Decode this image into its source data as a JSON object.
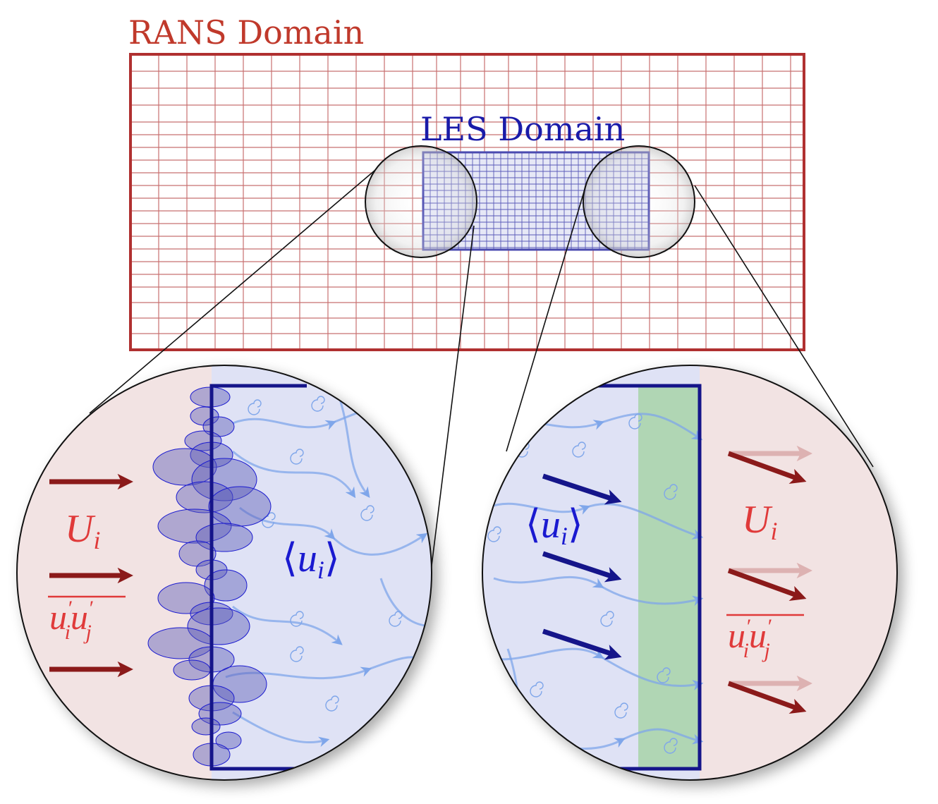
{
  "labels": {
    "rans_domain": "RANS Domain",
    "les_domain": "LES Domain"
  },
  "math": {
    "mean_velocity_symbol": "U",
    "mean_velocity_subscript": "i",
    "resolved_velocity_open": "⟨",
    "resolved_velocity_symbol": "u",
    "resolved_velocity_subscript": "i",
    "resolved_velocity_close": "⟩",
    "reynolds_stress_u1": "u",
    "reynolds_stress_prime": "′",
    "reynolds_stress_sub_i": "i",
    "reynolds_stress_u2": "u",
    "reynolds_stress_sub_j": "j"
  },
  "colors": {
    "rans": "#c0392b",
    "rans_dark": "#8b1a1a",
    "les": "#1a1aa8",
    "les_dark": "#15158a",
    "les_fill": "#dfe2f5",
    "rans_fill": "#f2e3e3",
    "blend_zone": "#a8d4a8",
    "streamline": "#7fa6ea"
  }
}
